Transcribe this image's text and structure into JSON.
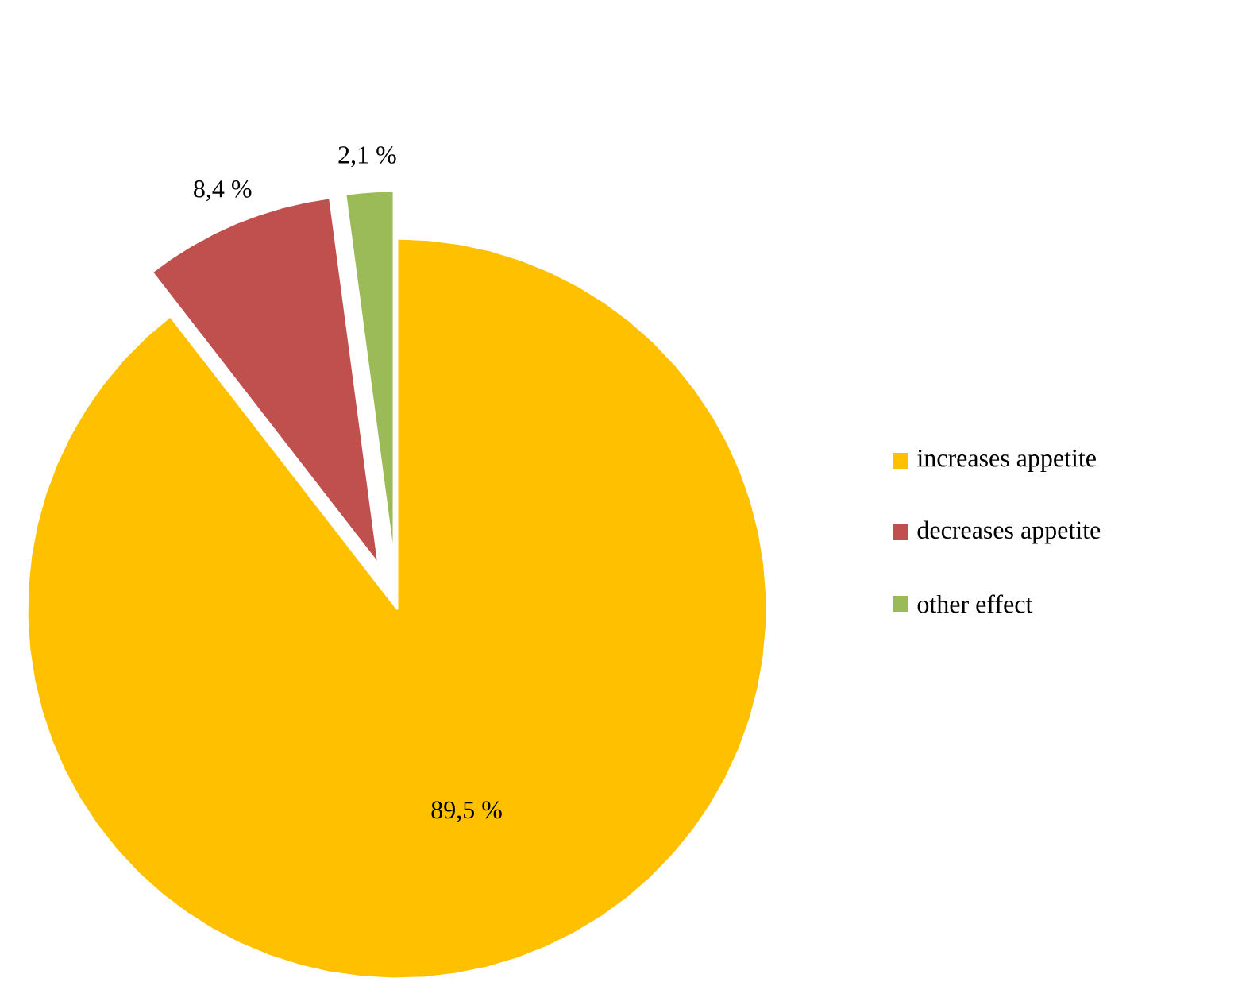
{
  "chart_data": {
    "type": "pie",
    "categories": [
      "increases appetite",
      "decreases appetite",
      "other effect"
    ],
    "values": [
      89.5,
      8.4,
      2.1
    ],
    "colors": [
      "#ffc000",
      "#c0504d",
      "#9bbb59"
    ],
    "value_labels": [
      "89,5 %",
      "8,4 %",
      "2,1 %"
    ],
    "legend": "right"
  }
}
